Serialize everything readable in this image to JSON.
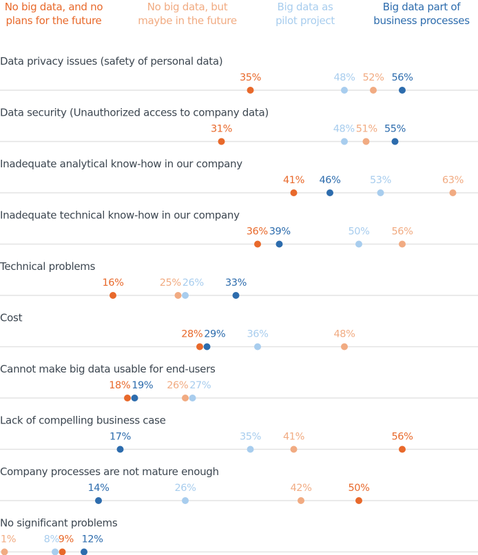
{
  "chart_data": {
    "type": "dot",
    "xlim": [
      0,
      65
    ],
    "grid": false,
    "legend_placement": "top",
    "series": [
      {
        "name": "No big data, and no\nplans for the future",
        "color": "#e8692b"
      },
      {
        "name": "No big data, but\nmaybe in the future",
        "color": "#f1ab82"
      },
      {
        "name": "Big data as\npilot project",
        "color": "#a8cdee"
      },
      {
        "name": "Big data part of\nbusiness processes",
        "color": "#2d6cad"
      }
    ],
    "categories": [
      "Data privacy issues (safety of personal data)",
      "Data security (Unauthorized access to company data)",
      "Inadequate analytical know-how in our company",
      "Inadequate technical know-how in our company",
      "Technical problems",
      "Cost",
      "Cannot make big data usable for end-users",
      "Lack of compelling business case",
      "Company processes are not mature enough",
      "No significant problems"
    ],
    "values": [
      [
        35,
        52,
        48,
        56
      ],
      [
        31,
        51,
        48,
        55
      ],
      [
        41,
        63,
        53,
        46
      ],
      [
        36,
        56,
        50,
        39
      ],
      [
        16,
        25,
        26,
        33
      ],
      [
        28,
        48,
        36,
        29
      ],
      [
        18,
        26,
        27,
        19
      ],
      [
        56,
        41,
        35,
        17
      ],
      [
        50,
        42,
        26,
        14
      ],
      [
        9,
        1,
        8,
        12
      ]
    ],
    "unit": "%"
  }
}
